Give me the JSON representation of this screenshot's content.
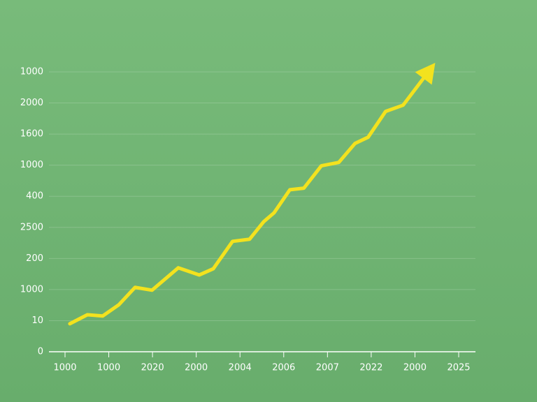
{
  "chart_data": {
    "type": "line",
    "y_categories": [
      "0",
      "10",
      "1000",
      "200",
      "2500",
      "400",
      "1000",
      "1600",
      "2000",
      "1000"
    ],
    "x_categories": [
      "1000",
      "1000",
      "2020",
      "2000",
      "2004",
      "2006",
      "2007",
      "2022",
      "2000",
      "2025"
    ],
    "xlim": [
      0,
      9
    ],
    "ylim": [
      0,
      9
    ],
    "grid": true,
    "series": [
      {
        "color": "#f3e21e",
        "x": [
          0.11,
          0.51,
          0.86,
          1.23,
          1.6,
          1.99,
          2.59,
          3.07,
          3.39,
          3.83,
          4.22,
          4.54,
          4.78,
          5.14,
          5.46,
          5.86,
          6.26,
          6.63,
          6.93,
          7.33,
          7.73,
          8.29
        ],
        "values": [
          0.9,
          1.19,
          1.15,
          1.51,
          2.07,
          1.98,
          2.7,
          2.47,
          2.67,
          3.55,
          3.62,
          4.18,
          4.47,
          5.21,
          5.26,
          5.98,
          6.09,
          6.7,
          6.9,
          7.73,
          7.93,
          8.97
        ]
      }
    ]
  }
}
